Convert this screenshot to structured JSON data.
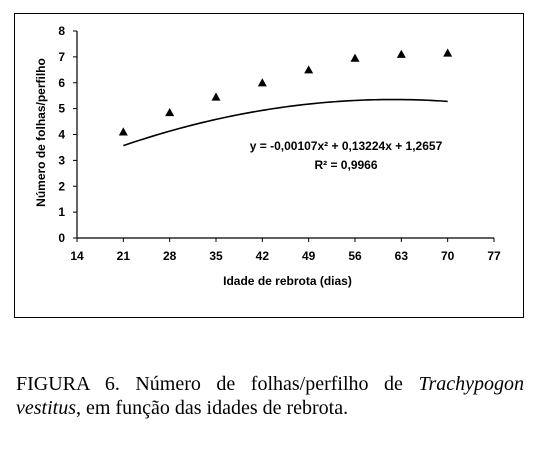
{
  "chart_data": {
    "type": "scatter",
    "xlabel": "Idade de rebrota (dias)",
    "ylabel": "Número de folhas/perfilho",
    "xlim": [
      14,
      77
    ],
    "ylim": [
      0,
      8
    ],
    "x_ticks": [
      14,
      21,
      28,
      35,
      42,
      49,
      56,
      63,
      70,
      77
    ],
    "y_ticks": [
      0,
      1,
      2,
      3,
      4,
      5,
      6,
      7,
      8
    ],
    "x_tick_labels": [
      "14",
      "21",
      "28",
      "35",
      "42",
      "49",
      "56",
      "63",
      "70",
      "77"
    ],
    "y_tick_labels": [
      "0",
      "1",
      "2",
      "3",
      "4",
      "5",
      "6",
      "7",
      "8"
    ],
    "series": [
      {
        "marker": "triangle",
        "x": [
          21,
          28,
          35,
          42,
          49,
          56,
          63,
          70
        ],
        "y": [
          4.1,
          4.85,
          5.45,
          6.0,
          6.5,
          6.95,
          7.1,
          7.15
        ]
      }
    ],
    "trendline": {
      "type": "polynomial",
      "coefficients": [
        -0.00107,
        0.13224,
        1.2657
      ],
      "x_range": [
        21,
        70
      ]
    },
    "equation": {
      "line1": "y = -0,00107x² + 0,13224x + 1,2657",
      "line2": "R² = 0,9966"
    },
    "grid": false,
    "legend": "none"
  },
  "caption": {
    "prefix": "FIGURA 6. Número de folhas/perfilho de",
    "species": "Trachypogon vestitus",
    "suffix": ", em função das idades de rebrota."
  }
}
